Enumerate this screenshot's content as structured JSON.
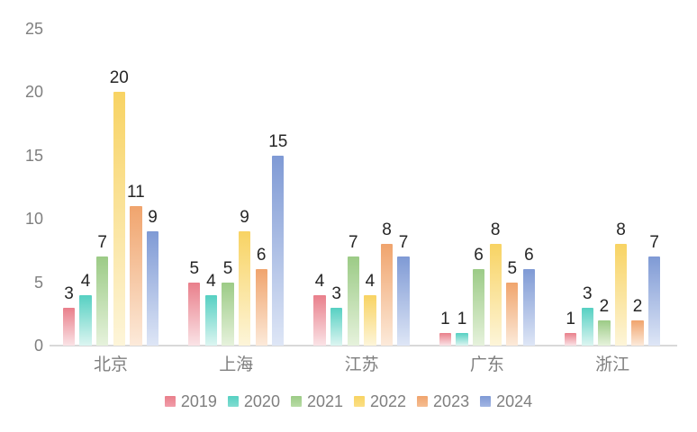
{
  "chart_data": {
    "type": "bar",
    "title": "",
    "categories": [
      "北京",
      "上海",
      "江苏",
      "广东",
      "浙江"
    ],
    "series": [
      {
        "name": "2019",
        "values": [
          3,
          5,
          4,
          1,
          1
        ],
        "color_top": "#e97f8b",
        "color_bottom": "#fae3e6",
        "swatch": "#f19daa"
      },
      {
        "name": "2020",
        "values": [
          4,
          4,
          3,
          1,
          3
        ],
        "color_top": "#56d0c2",
        "color_bottom": "#dcf5f1",
        "swatch": "#82dcd1"
      },
      {
        "name": "2021",
        "values": [
          7,
          5,
          7,
          6,
          2
        ],
        "color_top": "#9ccb86",
        "color_bottom": "#e6f2dc",
        "swatch": "#b8dca6"
      },
      {
        "name": "2022",
        "values": [
          20,
          9,
          4,
          8,
          8
        ],
        "color_top": "#f8d363",
        "color_bottom": "#fdf5d9",
        "swatch": "#fbdf85"
      },
      {
        "name": "2023",
        "values": [
          11,
          6,
          8,
          5,
          2
        ],
        "color_top": "#f0a46d",
        "color_bottom": "#fceada",
        "swatch": "#f5bd92"
      },
      {
        "name": "2024",
        "values": [
          9,
          15,
          7,
          6,
          7
        ],
        "color_top": "#7f9ad5",
        "color_bottom": "#dee6f6",
        "swatch": "#a2b5e3"
      }
    ],
    "ylim": [
      0,
      25
    ],
    "yticks": [
      0,
      5,
      10,
      15,
      20,
      25
    ],
    "grid": false,
    "legend_position": "bottom",
    "value_labels": true,
    "ylabel": "",
    "xlabel": ""
  },
  "colors": {
    "background": "#ffffff",
    "axis_text": "#7f7f7f",
    "value_text": "#262626",
    "axis_line": "#d9d9d9"
  }
}
